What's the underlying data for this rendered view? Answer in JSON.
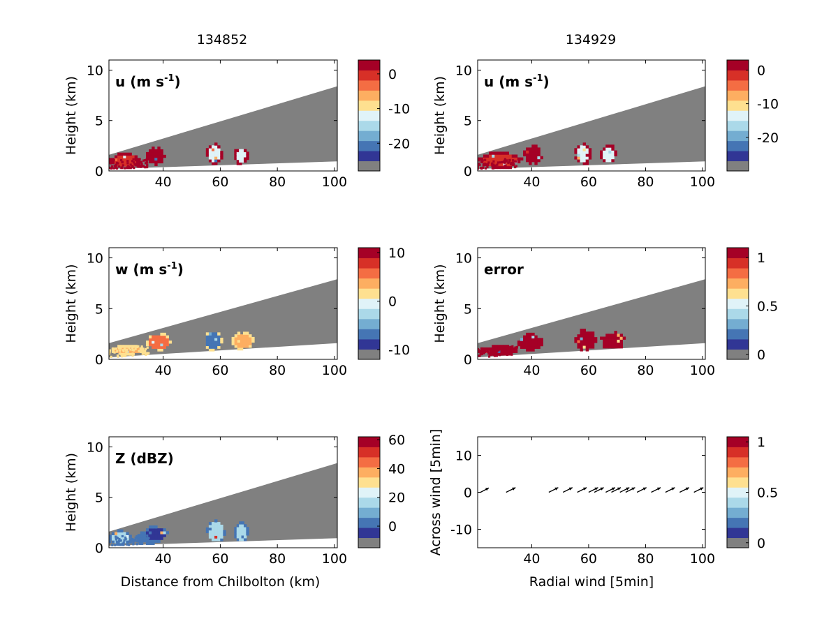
{
  "figure": {
    "col_titles": [
      "134852",
      "134929"
    ]
  },
  "chart_data": [
    {
      "id": "u-left",
      "type": "heatmap",
      "column": 0,
      "row": 0,
      "label_parts": [
        "u (m s",
        "-1",
        ")"
      ],
      "ylabel": "Height (km)",
      "xlabel": "",
      "xlim": [
        21,
        101
      ],
      "ylim": [
        0,
        11
      ],
      "xticks": [
        40,
        60,
        80,
        100
      ],
      "yticks": [
        0,
        5,
        10
      ],
      "beam": {
        "bottom": [
          0.2,
          0.95
        ],
        "top": [
          1.6,
          8.4
        ]
      },
      "colorbar": {
        "min": -28,
        "max": 4,
        "ticks": [
          0,
          -10,
          -20
        ]
      },
      "echo_color": "#a50026",
      "blobs": [
        {
          "x": [
            21,
            33
          ],
          "y": [
            0.2,
            1.8
          ],
          "color": "#d73027"
        },
        {
          "x": [
            34,
            41
          ],
          "y": [
            0.5,
            2.4
          ],
          "color": "#a50026"
        },
        {
          "x": [
            55,
            61
          ],
          "y": [
            0.6,
            2.8
          ],
          "color": "#e0f3f8"
        },
        {
          "x": [
            65,
            70
          ],
          "y": [
            0.6,
            2.4
          ],
          "color": "#e0f3f8"
        }
      ]
    },
    {
      "id": "u-right",
      "type": "heatmap",
      "column": 1,
      "row": 0,
      "label_parts": [
        "u (m s",
        "-1",
        ")"
      ],
      "ylabel": "Height (km)",
      "xlabel": "",
      "xlim": [
        21,
        101
      ],
      "ylim": [
        0,
        11
      ],
      "xticks": [
        40,
        60,
        80,
        100
      ],
      "yticks": [
        0,
        5,
        10
      ],
      "beam": {
        "bottom": [
          0.2,
          0.95
        ],
        "top": [
          1.6,
          8.4
        ]
      },
      "colorbar": {
        "min": -30,
        "max": 3,
        "ticks": [
          0,
          -10,
          -20
        ]
      },
      "echo_color": "#a50026",
      "blobs": [
        {
          "x": [
            21,
            37
          ],
          "y": [
            0.2,
            1.9
          ],
          "color": "#d73027"
        },
        {
          "x": [
            37,
            44
          ],
          "y": [
            0.6,
            2.6
          ],
          "color": "#a50026"
        },
        {
          "x": [
            55,
            61
          ],
          "y": [
            0.6,
            2.8
          ],
          "color": "#e0f3f8"
        },
        {
          "x": [
            64,
            70
          ],
          "y": [
            0.6,
            2.6
          ],
          "color": "#e0f3f8"
        }
      ]
    },
    {
      "id": "w-left",
      "type": "heatmap",
      "column": 0,
      "row": 1,
      "label_parts": [
        "w (m s",
        "-1",
        ")"
      ],
      "ylabel": "Height (km)",
      "xlabel": "",
      "xlim": [
        21,
        101
      ],
      "ylim": [
        0,
        11
      ],
      "xticks": [
        40,
        60,
        80,
        100
      ],
      "yticks": [
        0,
        5,
        10
      ],
      "beam": {
        "bottom": [
          0.2,
          1.6
        ],
        "top": [
          1.6,
          7.9
        ]
      },
      "colorbar": {
        "min": -12,
        "max": 11,
        "ticks": [
          10,
          0,
          -10
        ]
      },
      "echo_color": "#fee090",
      "blobs": [
        {
          "x": [
            21,
            34
          ],
          "y": [
            0.4,
            1.4
          ],
          "color": "#fdae61"
        },
        {
          "x": [
            34,
            43
          ],
          "y": [
            0.8,
            2.6
          ],
          "color": "#f46d43"
        },
        {
          "x": [
            54,
            61
          ],
          "y": [
            0.8,
            2.9
          ],
          "color": "#4575b4"
        },
        {
          "x": [
            64,
            72
          ],
          "y": [
            0.9,
            2.7
          ],
          "color": "#fdae61"
        }
      ]
    },
    {
      "id": "error",
      "type": "heatmap",
      "column": 1,
      "row": 1,
      "label_parts": [
        "error"
      ],
      "ylabel": "Height (km)",
      "xlabel": "",
      "xlim": [
        21,
        101
      ],
      "ylim": [
        0,
        11
      ],
      "xticks": [
        40,
        60,
        80,
        100
      ],
      "yticks": [
        0,
        5,
        10
      ],
      "beam": {
        "bottom": [
          0.2,
          1.6
        ],
        "top": [
          1.6,
          7.9
        ]
      },
      "colorbar": {
        "min": -0.05,
        "max": 1.1,
        "ticks": [
          1,
          0.5,
          0
        ]
      },
      "echo_color": "#a50026",
      "blobs": [
        {
          "x": [
            21,
            36
          ],
          "y": [
            0.4,
            1.4
          ],
          "color": "#a50026"
        },
        {
          "x": [
            35,
            44
          ],
          "y": [
            0.8,
            2.6
          ],
          "color": "#a50026"
        },
        {
          "x": [
            55,
            63
          ],
          "y": [
            0.8,
            3.0
          ],
          "color": "#a50026"
        },
        {
          "x": [
            64,
            73
          ],
          "y": [
            0.8,
            2.8
          ],
          "color": "#a50026"
        }
      ]
    },
    {
      "id": "z-left",
      "type": "heatmap",
      "column": 0,
      "row": 2,
      "label_parts": [
        "Z (dBZ)"
      ],
      "ylabel": "Height (km)",
      "xlabel": "Distance from Chilbolton (km)",
      "xlim": [
        21,
        101
      ],
      "ylim": [
        0,
        11
      ],
      "xticks": [
        40,
        60,
        80,
        100
      ],
      "yticks": [
        0,
        5,
        10
      ],
      "beam": {
        "bottom": [
          0.2,
          0.95
        ],
        "top": [
          1.6,
          8.4
        ]
      },
      "colorbar": {
        "min": -15,
        "max": 62,
        "ticks": [
          60,
          40,
          20,
          0
        ]
      },
      "echo_color": "#4575b4",
      "blobs": [
        {
          "x": [
            21,
            29
          ],
          "y": [
            0.2,
            1.8
          ],
          "color": "#abd9e9"
        },
        {
          "x": [
            30,
            39
          ],
          "y": [
            0.3,
            1.6
          ],
          "color": "#4575b4"
        },
        {
          "x": [
            33,
            42
          ],
          "y": [
            0.5,
            2.2
          ],
          "color": "#313695"
        },
        {
          "x": [
            55,
            62
          ],
          "y": [
            0.4,
            2.8
          ],
          "color": "#abd9e9"
        },
        {
          "x": [
            65,
            70
          ],
          "y": [
            0.4,
            2.6
          ],
          "color": "#abd9e9"
        }
      ]
    },
    {
      "id": "wind",
      "type": "scatter",
      "column": 1,
      "row": 2,
      "label_parts": [],
      "ylabel": "Across wind [5min]",
      "xlabel": "Radial wind [5min]",
      "xlim": [
        21,
        101
      ],
      "ylim": [
        -15,
        15
      ],
      "xticks": [
        40,
        60,
        80,
        100
      ],
      "yticks": [
        10,
        0,
        -10
      ],
      "colorbar": {
        "min": -0.05,
        "max": 1.05,
        "ticks": [
          1,
          0.5,
          0
        ]
      },
      "arrows": [
        {
          "x": 22,
          "u": 2.3,
          "v": 1.2
        },
        {
          "x": 31,
          "u": 2.6,
          "v": 1.3
        },
        {
          "x": 46,
          "u": 2.6,
          "v": 1.3
        },
        {
          "x": 51,
          "u": 2.6,
          "v": 1.3
        },
        {
          "x": 56,
          "u": 2.6,
          "v": 1.3
        },
        {
          "x": 60,
          "u": 2.6,
          "v": 1.3
        },
        {
          "x": 62,
          "u": 2.6,
          "v": 1.3
        },
        {
          "x": 66,
          "u": 2.6,
          "v": 1.3
        },
        {
          "x": 68,
          "u": 2.6,
          "v": 1.3
        },
        {
          "x": 71,
          "u": 2.6,
          "v": 1.3
        },
        {
          "x": 73,
          "u": 2.6,
          "v": 1.3
        },
        {
          "x": 77,
          "u": 2.6,
          "v": 1.3
        },
        {
          "x": 82,
          "u": 2.6,
          "v": 1.3
        },
        {
          "x": 87,
          "u": 2.6,
          "v": 1.3
        },
        {
          "x": 92,
          "u": 2.6,
          "v": 1.3
        },
        {
          "x": 97,
          "u": 2.6,
          "v": 1.3
        }
      ]
    }
  ],
  "colormap": [
    "#808080",
    "#313695",
    "#4575b4",
    "#74add1",
    "#abd9e9",
    "#e0f3f8",
    "#fee090",
    "#fdae61",
    "#f46d43",
    "#d73027",
    "#a50026"
  ],
  "colors": {
    "beam_fill": "#808080"
  }
}
